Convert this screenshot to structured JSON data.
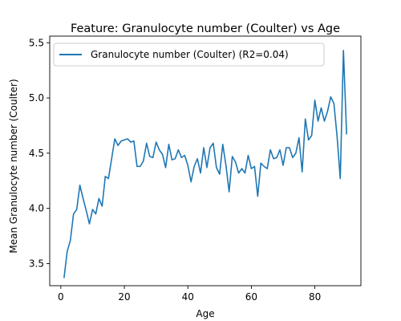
{
  "chart_data": {
    "type": "line",
    "title": "Feature: Granulocyte number (Coulter) vs Age",
    "xlabel": "Age",
    "ylabel": "Mean Granulocyte number (Coulter)",
    "xlim": [
      -3.5,
      94.5
    ],
    "ylim": [
      3.3,
      5.56
    ],
    "xticks": [
      0,
      20,
      40,
      60,
      80
    ],
    "xtick_labels": [
      "0",
      "20",
      "40",
      "60",
      "80"
    ],
    "yticks": [
      3.5,
      4.0,
      4.5,
      5.0,
      5.5
    ],
    "ytick_labels": [
      "3.5",
      "4.0",
      "4.5",
      "5.0",
      "5.5"
    ],
    "grid": false,
    "legend_position": "top-left",
    "series": [
      {
        "name": "Granulocyte number (Coulter) (R2=0.04)",
        "color": "#1f77b4",
        "x": [
          1,
          2,
          3,
          4,
          5,
          6,
          7,
          8,
          9,
          10,
          11,
          12,
          13,
          14,
          15,
          16,
          17,
          18,
          19,
          20,
          21,
          22,
          23,
          24,
          25,
          26,
          27,
          28,
          29,
          30,
          31,
          32,
          33,
          34,
          35,
          36,
          37,
          38,
          39,
          40,
          41,
          42,
          43,
          44,
          45,
          46,
          47,
          48,
          49,
          50,
          51,
          52,
          53,
          54,
          55,
          56,
          57,
          58,
          59,
          60,
          61,
          62,
          63,
          64,
          65,
          66,
          67,
          68,
          69,
          70,
          71,
          72,
          73,
          74,
          75,
          76,
          77,
          78,
          79,
          80,
          81,
          82,
          83,
          84,
          85,
          86,
          87,
          88,
          89,
          90
        ],
        "values": [
          3.37,
          3.61,
          3.71,
          3.95,
          3.99,
          4.21,
          4.09,
          3.98,
          3.86,
          3.99,
          3.95,
          4.09,
          4.02,
          4.29,
          4.27,
          4.45,
          4.63,
          4.57,
          4.61,
          4.62,
          4.63,
          4.6,
          4.61,
          4.38,
          4.38,
          4.43,
          4.59,
          4.47,
          4.46,
          4.6,
          4.53,
          4.49,
          4.37,
          4.58,
          4.44,
          4.45,
          4.53,
          4.46,
          4.48,
          4.39,
          4.24,
          4.38,
          4.45,
          4.32,
          4.55,
          4.37,
          4.55,
          4.59,
          4.37,
          4.31,
          4.58,
          4.39,
          4.15,
          4.47,
          4.42,
          4.32,
          4.36,
          4.32,
          4.48,
          4.36,
          4.38,
          4.11,
          4.41,
          4.38,
          4.36,
          4.53,
          4.45,
          4.46,
          4.53,
          4.39,
          4.55,
          4.55,
          4.46,
          4.5,
          4.64,
          4.33,
          4.81,
          4.62,
          4.66,
          4.98,
          4.79,
          4.91,
          4.79,
          4.88,
          5.01,
          4.95,
          4.65,
          4.27,
          5.43,
          4.67
        ]
      }
    ]
  }
}
